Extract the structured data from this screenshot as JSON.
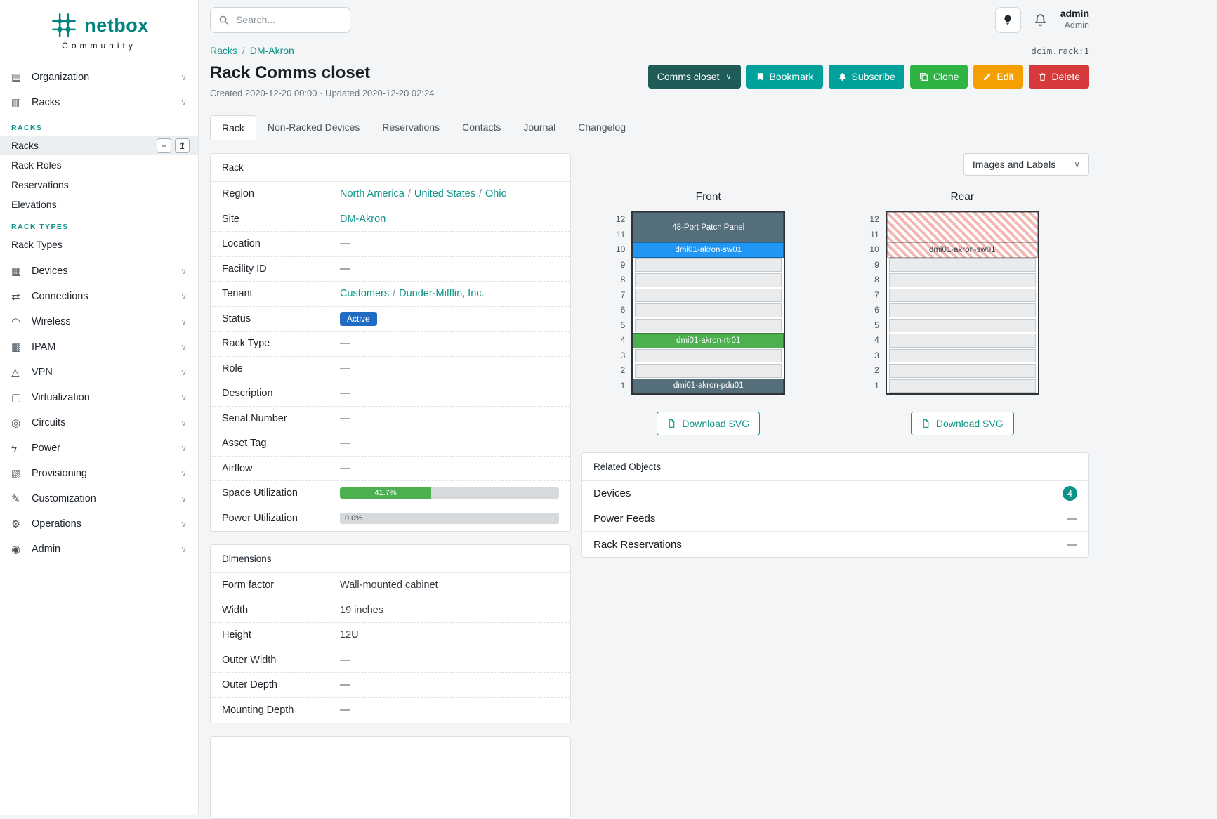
{
  "colors": {
    "brand_teal": "#00857e",
    "link_teal": "#0d9488",
    "button_teal": "#00a19b",
    "button_dark": "#1f5c58",
    "button_green": "#2fb344",
    "button_orange": "#f59f00",
    "button_red": "#d63939",
    "status_badge_blue": "#206bc4",
    "progress_green": "#4caf50",
    "device_slate": "#546e7a",
    "device_blue": "#2196f3",
    "device_green": "#4caf50",
    "hatch_stripe": "#f5b7b1",
    "count_badge_teal": "#0d9488"
  },
  "ui": {
    "chevron": "∨",
    "separator": "/",
    "add_icon": "+",
    "import_icon": "↥",
    "meta_dot": "·"
  },
  "brand": {
    "name": "netbox",
    "tagline": "Community"
  },
  "topbar": {
    "search_placeholder": "Search...",
    "user_name": "admin",
    "user_role": "Admin"
  },
  "sidebar": {
    "items": [
      {
        "label": "Organization",
        "icon": "▤"
      },
      {
        "label": "Racks",
        "icon": "▥"
      },
      {
        "label": "Devices",
        "icon": "▦"
      },
      {
        "label": "Connections",
        "icon": "⇄"
      },
      {
        "label": "Wireless",
        "icon": "◠"
      },
      {
        "label": "IPAM",
        "icon": "▩"
      },
      {
        "label": "VPN",
        "icon": "△"
      },
      {
        "label": "Virtualization",
        "icon": "▢"
      },
      {
        "label": "Circuits",
        "icon": "◎"
      },
      {
        "label": "Power",
        "icon": "ϟ"
      },
      {
        "label": "Provisioning",
        "icon": "▧"
      },
      {
        "label": "Customization",
        "icon": "✎"
      },
      {
        "label": "Operations",
        "icon": "⚙"
      },
      {
        "label": "Admin",
        "icon": "◉"
      }
    ],
    "racks_section": {
      "group1_header": "RACKS",
      "group1_items": [
        "Racks",
        "Rack Roles",
        "Reservations",
        "Elevations"
      ],
      "group2_header": "RACK TYPES",
      "group2_items": [
        "Rack Types"
      ]
    }
  },
  "breadcrumb": {
    "items": [
      "Racks",
      "DM-Akron"
    ],
    "object_ref": "dcim.rack:1"
  },
  "header": {
    "title": "Rack Comms closet",
    "meta": "Created 2020-12-20 00:00 · Updated 2020-12-20 02:24",
    "actions": {
      "name_dropdown": "Comms closet",
      "bookmark": "Bookmark",
      "subscribe": "Subscribe",
      "clone": "Clone",
      "edit": "Edit",
      "delete": "Delete"
    }
  },
  "tabs": [
    "Rack",
    "Non-Racked Devices",
    "Reservations",
    "Contacts",
    "Journal",
    "Changelog"
  ],
  "rack_card": {
    "title": "Rack",
    "rows": {
      "region": {
        "label": "Region",
        "links": [
          "North America",
          "United States",
          "Ohio"
        ]
      },
      "site": {
        "label": "Site",
        "link": "DM-Akron"
      },
      "location": {
        "label": "Location",
        "value": "—"
      },
      "facility": {
        "label": "Facility ID",
        "value": "—"
      },
      "tenant": {
        "label": "Tenant",
        "links": [
          "Customers",
          "Dunder-Mifflin, Inc."
        ]
      },
      "status": {
        "label": "Status",
        "badge": "Active"
      },
      "rack_type": {
        "label": "Rack Type",
        "value": "—"
      },
      "role": {
        "label": "Role",
        "value": "—"
      },
      "description": {
        "label": "Description",
        "value": "—"
      },
      "serial": {
        "label": "Serial Number",
        "value": "—"
      },
      "asset_tag": {
        "label": "Asset Tag",
        "value": "—"
      },
      "airflow": {
        "label": "Airflow",
        "value": "—"
      },
      "space": {
        "label": "Space Utilization",
        "pct": 41.7,
        "text": "41.7%"
      },
      "power": {
        "label": "Power Utilization",
        "pct": 0,
        "text": "0.0%"
      }
    }
  },
  "dimensions_card": {
    "title": "Dimensions",
    "rows": {
      "form_factor": {
        "label": "Form factor",
        "value": "Wall-mounted cabinet"
      },
      "width": {
        "label": "Width",
        "value": "19 inches"
      },
      "height": {
        "label": "Height",
        "value": "12U"
      },
      "outer_width": {
        "label": "Outer Width",
        "value": "—"
      },
      "outer_depth": {
        "label": "Outer Depth",
        "value": "—"
      },
      "mounting_depth": {
        "label": "Mounting Depth",
        "value": "—"
      }
    }
  },
  "elevation": {
    "view_selector": "Images and Labels",
    "front_title": "Front",
    "rear_title": "Rear",
    "download_label": "Download SVG",
    "unit_numbers": [
      12,
      11,
      10,
      9,
      8,
      7,
      6,
      5,
      4,
      3,
      2,
      1
    ],
    "front_units": [
      {
        "span": 2,
        "label": "48-Port Patch Panel",
        "style": "slate"
      },
      {
        "span": 1,
        "label": "dmi01-akron-sw01",
        "style": "blue"
      },
      {
        "span": 1,
        "label": "",
        "style": "empty"
      },
      {
        "span": 1,
        "label": "",
        "style": "empty"
      },
      {
        "span": 1,
        "label": "",
        "style": "empty"
      },
      {
        "span": 1,
        "label": "",
        "style": "empty"
      },
      {
        "span": 1,
        "label": "",
        "style": "empty"
      },
      {
        "span": 1,
        "label": "dmi01-akron-rtr01",
        "style": "green"
      },
      {
        "span": 1,
        "label": "",
        "style": "empty"
      },
      {
        "span": 1,
        "label": "",
        "style": "empty"
      },
      {
        "span": 1,
        "label": "dmi01-akron-pdu01",
        "style": "slate"
      }
    ],
    "rear_units": [
      {
        "span": 2,
        "label": "",
        "style": "hatch"
      },
      {
        "span": 1,
        "label": "dmi01-akron-sw01",
        "style": "hatch"
      },
      {
        "span": 1,
        "label": "",
        "style": "empty"
      },
      {
        "span": 1,
        "label": "",
        "style": "empty"
      },
      {
        "span": 1,
        "label": "",
        "style": "empty"
      },
      {
        "span": 1,
        "label": "",
        "style": "empty"
      },
      {
        "span": 1,
        "label": "",
        "style": "empty"
      },
      {
        "span": 1,
        "label": "",
        "style": "empty"
      },
      {
        "span": 1,
        "label": "",
        "style": "empty"
      },
      {
        "span": 1,
        "label": "",
        "style": "empty"
      },
      {
        "span": 1,
        "label": "",
        "style": "empty"
      }
    ]
  },
  "related_card": {
    "title": "Related Objects",
    "rows": [
      {
        "label": "Devices",
        "badge": "4"
      },
      {
        "label": "Power Feeds",
        "value": "—"
      },
      {
        "label": "Rack Reservations",
        "value": "—"
      }
    ]
  }
}
